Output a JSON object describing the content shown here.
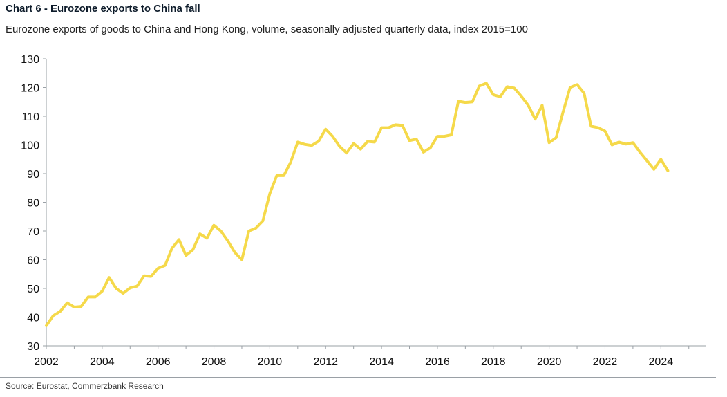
{
  "header": {
    "title": "Chart 6 - Eurozone exports to China fall",
    "subtitle": "Eurozone exports of goods to China and Hong Kong, volume, seasonally adjusted quarterly data, index 2015=100"
  },
  "footer": {
    "source": "Source: Eurostat, Commerzbank Research"
  },
  "colors": {
    "line": "#f5d94a",
    "axis": "#9aa0a6"
  },
  "chart_data": {
    "type": "line",
    "title": "Chart 6 - Eurozone exports to China fall",
    "subtitle": "Eurozone exports of goods to China and Hong Kong, volume, seasonally adjusted quarterly data, index 2015=100",
    "xlabel": "",
    "ylabel": "",
    "xlim": [
      2002,
      2025.6
    ],
    "ylim": [
      30,
      130
    ],
    "x_ticks": [
      2002,
      2004,
      2006,
      2008,
      2010,
      2012,
      2014,
      2016,
      2018,
      2020,
      2022,
      2024
    ],
    "y_ticks": [
      30,
      40,
      50,
      60,
      70,
      80,
      90,
      100,
      110,
      120,
      130
    ],
    "grid": false,
    "x": [
      2002.0,
      2002.25,
      2002.5,
      2002.75,
      2003.0,
      2003.25,
      2003.5,
      2003.75,
      2004.0,
      2004.25,
      2004.5,
      2004.75,
      2005.0,
      2005.25,
      2005.5,
      2005.75,
      2006.0,
      2006.25,
      2006.5,
      2006.75,
      2007.0,
      2007.25,
      2007.5,
      2007.75,
      2008.0,
      2008.25,
      2008.5,
      2008.75,
      2009.0,
      2009.25,
      2009.5,
      2009.75,
      2010.0,
      2010.25,
      2010.5,
      2010.75,
      2011.0,
      2011.25,
      2011.5,
      2011.75,
      2012.0,
      2012.25,
      2012.5,
      2012.75,
      2013.0,
      2013.25,
      2013.5,
      2013.75,
      2014.0,
      2014.25,
      2014.5,
      2014.75,
      2015.0,
      2015.25,
      2015.5,
      2015.75,
      2016.0,
      2016.25,
      2016.5,
      2016.75,
      2017.0,
      2017.25,
      2017.5,
      2017.75,
      2018.0,
      2018.25,
      2018.5,
      2018.75,
      2019.0,
      2019.25,
      2019.5,
      2019.75,
      2020.0,
      2020.25,
      2020.5,
      2020.75,
      2021.0,
      2021.25,
      2021.5,
      2021.75,
      2022.0,
      2022.25,
      2022.5,
      2022.75,
      2023.0,
      2023.25,
      2023.5,
      2023.75,
      2024.0,
      2024.25
    ],
    "series": [
      {
        "values": [
          37,
          40.5,
          42,
          45,
          43.5,
          43.7,
          47,
          47,
          49,
          53.8,
          50,
          48.3,
          50.2,
          50.8,
          54.4,
          54.2,
          57,
          58,
          64,
          67,
          61.5,
          63.5,
          69,
          67.5,
          72,
          70,
          66.5,
          62.5,
          60,
          70,
          71,
          73.5,
          83,
          89.3,
          89.3,
          94,
          101,
          100.2,
          99.8,
          101.3,
          105.5,
          103,
          99.5,
          97.2,
          100.5,
          98.5,
          101.2,
          101,
          106,
          106,
          107,
          106.8,
          101.5,
          102,
          97.5,
          99,
          103,
          103,
          103.5,
          115.2,
          114.8,
          115,
          120.5,
          121.5,
          117.5,
          116.8,
          120.3,
          119.8,
          117,
          113.8,
          109,
          113.8,
          100.8,
          102.5,
          111.5,
          120,
          121,
          118,
          106.5,
          106,
          104.8,
          100,
          101,
          100.3,
          100.8,
          97.5,
          94.5,
          91.5,
          95,
          91
        ]
      }
    ]
  }
}
